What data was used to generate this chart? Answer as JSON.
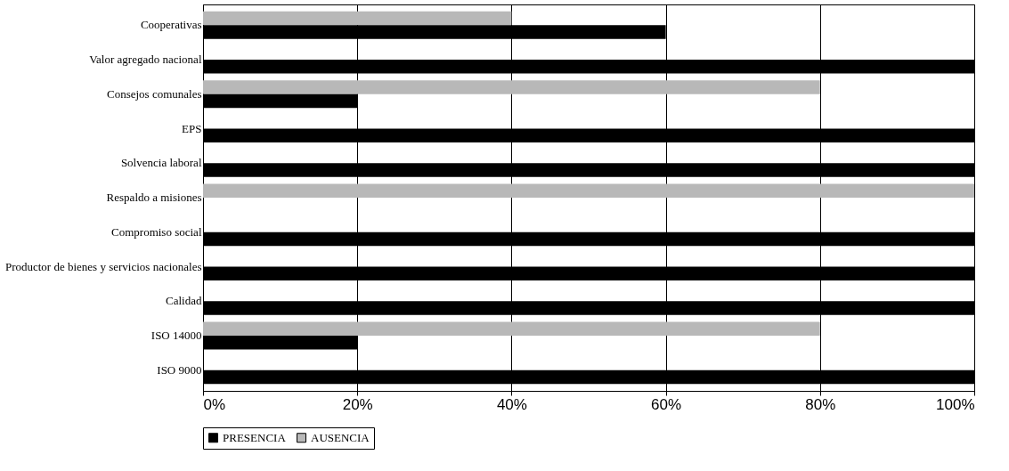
{
  "chart_data": {
    "type": "bar",
    "orientation": "horizontal",
    "categories": [
      "Cooperativas",
      "Valor agregado nacional",
      "Consejos comunales",
      "EPS",
      "Solvencia laboral",
      "Respaldo a misiones",
      "Compromiso social",
      "Productor de bienes y servicios nacionales",
      "Calidad",
      "ISO 14000",
      "ISO 9000"
    ],
    "series": [
      {
        "name": "AUSENCIA",
        "color": "#b8b8b8",
        "values": [
          40,
          0,
          80,
          0,
          0,
          100,
          0,
          0,
          0,
          80,
          0
        ]
      },
      {
        "name": "PRESENCIA",
        "color": "#000000",
        "values": [
          60,
          100,
          20,
          100,
          100,
          0,
          100,
          100,
          100,
          20,
          100
        ]
      }
    ],
    "xlim": [
      0,
      100
    ],
    "xticks": [
      {
        "value": 0,
        "label": "0%"
      },
      {
        "value": 20,
        "label": "20%"
      },
      {
        "value": 40,
        "label": "40%"
      },
      {
        "value": 60,
        "label": "60%"
      },
      {
        "value": 80,
        "label": "80%"
      },
      {
        "value": 100,
        "label": "100%"
      }
    ],
    "grid": "x",
    "legend": "bottom left"
  }
}
